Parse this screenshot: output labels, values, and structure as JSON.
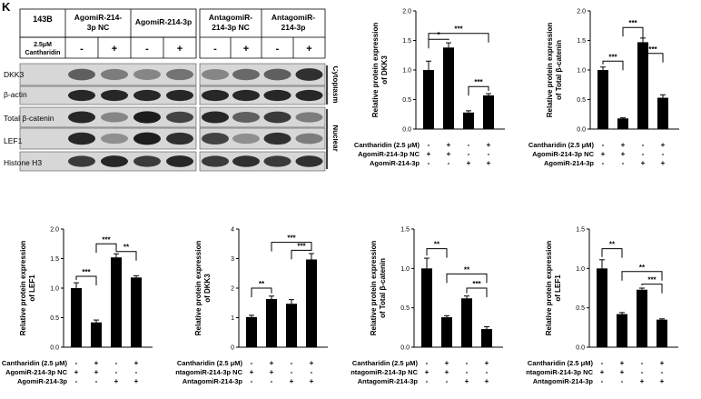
{
  "panel_label": "K",
  "blot": {
    "cell_line": "143B",
    "drug_label_line1": "2.5μM",
    "drug_label_line2": "Cantharidin",
    "groups": [
      "AgomiR-214-3p NC",
      "AgomiR-214-3p",
      "AntagomiR-214-3p NC",
      "AntagomiR-214-3p"
    ],
    "lane_signs": [
      "-",
      "+",
      "-",
      "+",
      "-",
      "+",
      "-",
      "+"
    ],
    "bands": [
      "DKK3",
      "β-actin",
      "Total β-catenin",
      "LEF1",
      "Histone H3"
    ],
    "right_labels": {
      "cytoplasm": "Cytoplasm",
      "nuclear": "Nuclear",
      "cell": "143B"
    }
  },
  "chart_data": [
    {
      "type": "bar",
      "ylabel": "Relative protein expression of DKK3",
      "ylim": [
        0,
        2.0
      ],
      "yticks": [
        "0.0",
        "0.5",
        "1.0",
        "1.5",
        "2.0"
      ],
      "values": [
        1.0,
        1.38,
        0.28,
        0.57
      ],
      "errors": [
        0.15,
        0.08,
        0.03,
        0.03
      ],
      "significance": [
        {
          "from": 0,
          "to": 1,
          "label": "*",
          "y": 1.52
        },
        {
          "from": 0,
          "to": 3,
          "label": "***",
          "y": 1.62
        },
        {
          "from": 2,
          "to": 3,
          "label": "***",
          "y": 0.72
        }
      ],
      "factor_rows": [
        {
          "label": "Cantharidin (2.5 μM)",
          "signs": [
            "-",
            "+",
            "-",
            "+"
          ]
        },
        {
          "label": "AgomiR-214-3p NC",
          "signs": [
            "+",
            "+",
            "-",
            "-"
          ]
        },
        {
          "label": "AgomiR-214-3p",
          "signs": [
            "-",
            "-",
            "+",
            "+"
          ]
        }
      ]
    },
    {
      "type": "bar",
      "ylabel": "Relative protein expression of Total β-catenin",
      "ylim": [
        0,
        2.0
      ],
      "yticks": [
        "0.0",
        "0.5",
        "1.0",
        "1.5",
        "2.0"
      ],
      "values": [
        1.0,
        0.18,
        1.47,
        0.53
      ],
      "errors": [
        0.05,
        0.01,
        0.07,
        0.05
      ],
      "significance": [
        {
          "from": 0,
          "to": 1,
          "label": "***",
          "y": 1.15
        },
        {
          "from": 1,
          "to": 2,
          "label": "***",
          "y": 1.72
        },
        {
          "from": 2,
          "to": 3,
          "label": "***",
          "y": 1.28
        }
      ],
      "factor_rows": [
        {
          "label": "Cantharidin (2.5 μM)",
          "signs": [
            "-",
            "+",
            "-",
            "+"
          ]
        },
        {
          "label": "AgomiR-214-3p NC",
          "signs": [
            "+",
            "+",
            "-",
            "-"
          ]
        },
        {
          "label": "AgomiR-214-3p",
          "signs": [
            "-",
            "-",
            "+",
            "+"
          ]
        }
      ]
    },
    {
      "type": "bar",
      "ylabel": "Relative protein expression of LEF1",
      "ylim": [
        0,
        2.0
      ],
      "yticks": [
        "0.0",
        "0.5",
        "1.0",
        "1.5",
        "2.0"
      ],
      "values": [
        1.0,
        0.42,
        1.52,
        1.18
      ],
      "errors": [
        0.09,
        0.04,
        0.06,
        0.03
      ],
      "significance": [
        {
          "from": 0,
          "to": 1,
          "label": "***",
          "y": 1.2
        },
        {
          "from": 1,
          "to": 2,
          "label": "***",
          "y": 1.75
        },
        {
          "from": 2,
          "to": 3,
          "label": "**",
          "y": 1.62
        }
      ],
      "factor_rows": [
        {
          "label": "Cantharidin (2.5 μM)",
          "signs": [
            "-",
            "+",
            "-",
            "+"
          ]
        },
        {
          "label": "AgomiR-214-3p NC",
          "signs": [
            "+",
            "+",
            "-",
            "-"
          ]
        },
        {
          "label": "AgomiR-214-3p",
          "signs": [
            "-",
            "-",
            "+",
            "+"
          ]
        }
      ]
    },
    {
      "type": "bar",
      "ylabel": "Relative protein expression of DKK3",
      "ylim": [
        0,
        4
      ],
      "yticks": [
        "0",
        "1",
        "2",
        "3",
        "4"
      ],
      "values": [
        1.02,
        1.63,
        1.47,
        2.97
      ],
      "errors": [
        0.06,
        0.1,
        0.14,
        0.2
      ],
      "significance": [
        {
          "from": 0,
          "to": 1,
          "label": "**",
          "y": 2.0
        },
        {
          "from": 1,
          "to": 3,
          "label": "***",
          "y": 3.55
        },
        {
          "from": 2,
          "to": 3,
          "label": "***",
          "y": 3.28
        }
      ],
      "factor_rows": [
        {
          "label": "Cantharidin (2.5 μM)",
          "signs": [
            "-",
            "+",
            "-",
            "+"
          ]
        },
        {
          "label": "AntagomiR-214-3p NC",
          "signs": [
            "+",
            "+",
            "-",
            "-"
          ]
        },
        {
          "label": "AntagomiR-214-3p",
          "signs": [
            "-",
            "-",
            "+",
            "+"
          ]
        }
      ]
    },
    {
      "type": "bar",
      "ylabel": "Relative protein expression of Total β-catenin",
      "ylim": [
        0,
        1.5
      ],
      "yticks": [
        "0.0",
        "0.5",
        "1.0",
        "1.5"
      ],
      "values": [
        1.0,
        0.38,
        0.62,
        0.23
      ],
      "errors": [
        0.13,
        0.02,
        0.03,
        0.03
      ],
      "significance": [
        {
          "from": 0,
          "to": 1,
          "label": "**",
          "y": 1.25
        },
        {
          "from": 1,
          "to": 3,
          "label": "**",
          "y": 0.93
        },
        {
          "from": 2,
          "to": 3,
          "label": "***",
          "y": 0.75
        }
      ],
      "factor_rows": [
        {
          "label": "Cantharidin (2.5 μM)",
          "signs": [
            "-",
            "+",
            "-",
            "+"
          ]
        },
        {
          "label": "AntagomiR-214-3p NC",
          "signs": [
            "+",
            "+",
            "-",
            "-"
          ]
        },
        {
          "label": "AntagomiR-214-3p",
          "signs": [
            "-",
            "-",
            "+",
            "+"
          ]
        }
      ]
    },
    {
      "type": "bar",
      "ylabel": "Relative protein expression of LEF1",
      "ylim": [
        0,
        1.5
      ],
      "yticks": [
        "0.0",
        "0.5",
        "1.0",
        "1.5"
      ],
      "values": [
        1.0,
        0.42,
        0.73,
        0.35
      ],
      "errors": [
        0.11,
        0.02,
        0.02,
        0.01
      ],
      "significance": [
        {
          "from": 0,
          "to": 1,
          "label": "**",
          "y": 1.25
        },
        {
          "from": 1,
          "to": 3,
          "label": "**",
          "y": 0.96
        },
        {
          "from": 2,
          "to": 3,
          "label": "***",
          "y": 0.8
        }
      ],
      "factor_rows": [
        {
          "label": "Cantharidin (2.5 μM)",
          "signs": [
            "-",
            "+",
            "-",
            "+"
          ]
        },
        {
          "label": "AntagomiR-214-3p NC",
          "signs": [
            "+",
            "+",
            "-",
            "-"
          ]
        },
        {
          "label": "AntagomiR-214-3p",
          "signs": [
            "-",
            "-",
            "+",
            "+"
          ]
        }
      ]
    }
  ]
}
